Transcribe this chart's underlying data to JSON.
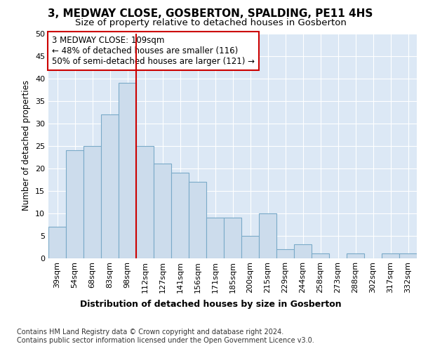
{
  "title1": "3, MEDWAY CLOSE, GOSBERTON, SPALDING, PE11 4HS",
  "title2": "Size of property relative to detached houses in Gosberton",
  "xlabel": "Distribution of detached houses by size in Gosberton",
  "ylabel": "Number of detached properties",
  "footnote1": "Contains HM Land Registry data © Crown copyright and database right 2024.",
  "footnote2": "Contains public sector information licensed under the Open Government Licence v3.0.",
  "annotation_line1": "3 MEDWAY CLOSE: 109sqm",
  "annotation_line2": "← 48% of detached houses are smaller (116)",
  "annotation_line3": "50% of semi-detached houses are larger (121) →",
  "bar_labels": [
    "39sqm",
    "54sqm",
    "68sqm",
    "83sqm",
    "98sqm",
    "112sqm",
    "127sqm",
    "141sqm",
    "156sqm",
    "171sqm",
    "185sqm",
    "200sqm",
    "215sqm",
    "229sqm",
    "244sqm",
    "258sqm",
    "273sqm",
    "288sqm",
    "302sqm",
    "317sqm",
    "332sqm"
  ],
  "bar_values": [
    7,
    24,
    25,
    32,
    39,
    25,
    21,
    19,
    17,
    9,
    9,
    5,
    10,
    2,
    3,
    1,
    0,
    1,
    0,
    1,
    1
  ],
  "bar_color": "#ccdcec",
  "bar_edge_color": "#7aaac8",
  "vline_color": "#cc0000",
  "ylim": [
    0,
    50
  ],
  "yticks": [
    0,
    5,
    10,
    15,
    20,
    25,
    30,
    35,
    40,
    45,
    50
  ],
  "plot_bg_color": "#dce8f5",
  "grid_color": "#ffffff",
  "annotation_box_color": "white",
  "annotation_box_edge": "#cc0000",
  "title1_fontsize": 11,
  "title2_fontsize": 9.5,
  "ylabel_fontsize": 8.5,
  "xlabel_fontsize": 9,
  "tick_fontsize": 8,
  "ann_fontsize": 8.5,
  "footnote_fontsize": 7
}
